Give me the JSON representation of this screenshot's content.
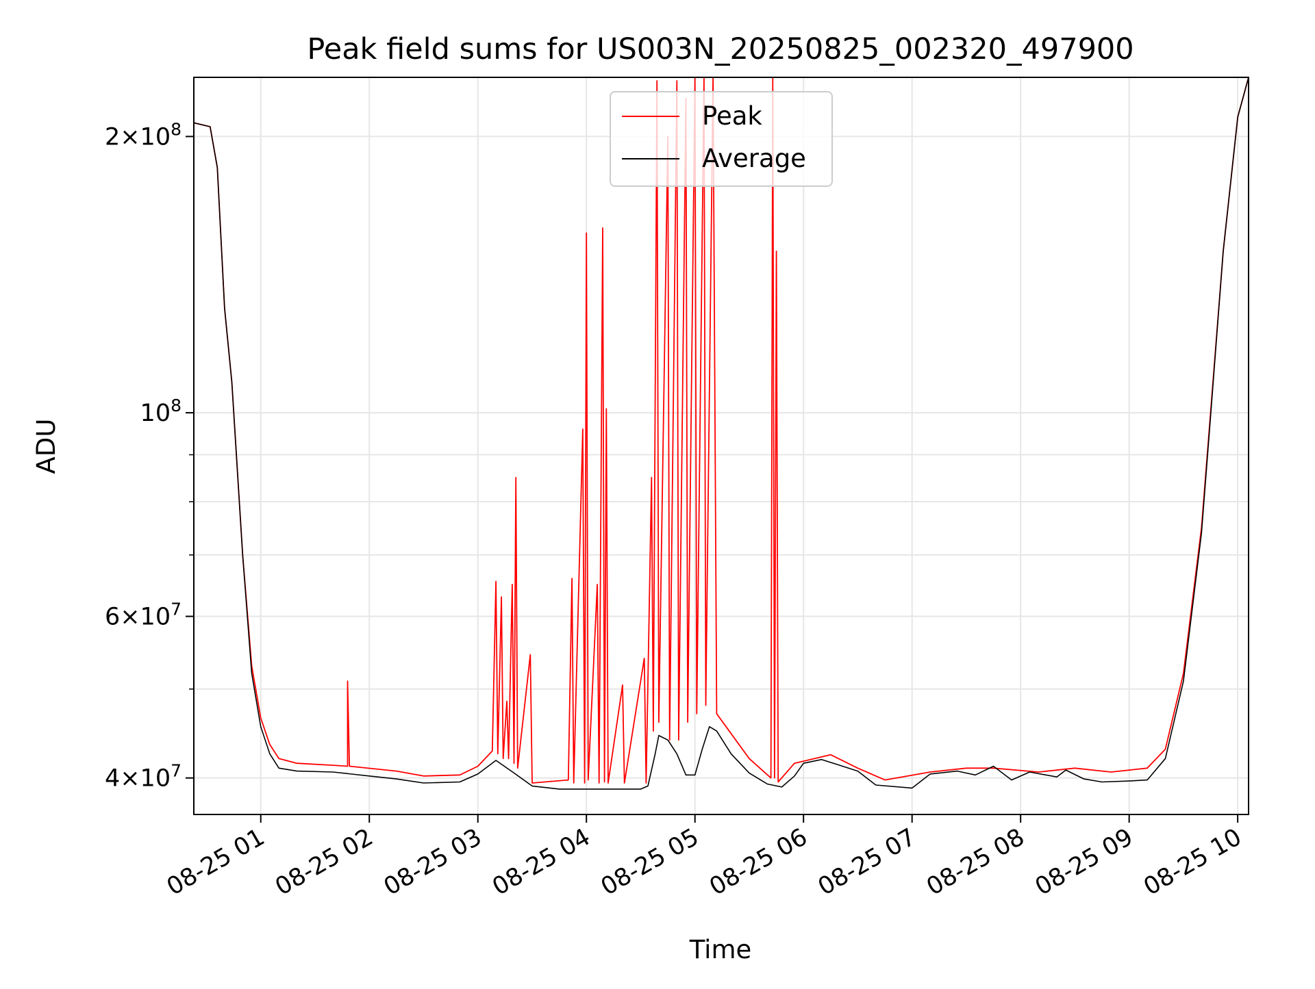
{
  "chart_data": {
    "type": "line",
    "title": "Peak field sums for US003N_20250825_002320_497900",
    "xlabel": "Time",
    "ylabel": "ADU",
    "y_scale": "log",
    "ylim": [
      36500000,
      232000000
    ],
    "xlim": [
      "2025-08-25 00:23",
      "2025-08-25 10:06"
    ],
    "grid": true,
    "legend_position": "top-center",
    "x_ticks": [
      {
        "value": "2025-08-25 01:00",
        "label": "08-25 01"
      },
      {
        "value": "2025-08-25 02:00",
        "label": "08-25 02"
      },
      {
        "value": "2025-08-25 03:00",
        "label": "08-25 03"
      },
      {
        "value": "2025-08-25 04:00",
        "label": "08-25 04"
      },
      {
        "value": "2025-08-25 05:00",
        "label": "08-25 05"
      },
      {
        "value": "2025-08-25 06:00",
        "label": "08-25 06"
      },
      {
        "value": "2025-08-25 07:00",
        "label": "08-25 07"
      },
      {
        "value": "2025-08-25 08:00",
        "label": "08-25 08"
      },
      {
        "value": "2025-08-25 09:00",
        "label": "08-25 09"
      },
      {
        "value": "2025-08-25 10:00",
        "label": "08-25 10"
      }
    ],
    "y_ticks": [
      {
        "value": 40000000,
        "mant": "4",
        "exp": "7"
      },
      {
        "value": 60000000,
        "mant": "6",
        "exp": "7"
      },
      {
        "value": 100000000,
        "mant": "",
        "exp": "8"
      },
      {
        "value": 200000000,
        "mant": "2",
        "exp": "8"
      }
    ],
    "y_minor_ticks": [
      50000000,
      70000000,
      80000000,
      90000000
    ],
    "series": [
      {
        "name": "Peak",
        "color": "#ff0000",
        "values": [
          [
            "2025-08-25 00:23",
            207000000
          ],
          [
            "2025-08-25 00:32",
            205000000
          ],
          [
            "2025-08-25 00:36",
            185000000
          ],
          [
            "2025-08-25 00:40",
            130000000
          ],
          [
            "2025-08-25 00:44",
            108000000
          ],
          [
            "2025-08-25 00:50",
            70000000
          ],
          [
            "2025-08-25 00:55",
            53000000
          ],
          [
            "2025-08-25 01:00",
            46500000
          ],
          [
            "2025-08-25 01:05",
            43500000
          ],
          [
            "2025-08-25 01:10",
            42000000
          ],
          [
            "2025-08-25 01:20",
            41500000
          ],
          [
            "2025-08-25 01:40",
            41300000
          ],
          [
            "2025-08-25 01:48",
            41200000
          ],
          [
            "2025-08-25 01:48",
            51000000
          ],
          [
            "2025-08-25 01:49",
            41200000
          ],
          [
            "2025-08-25 02:15",
            40700000
          ],
          [
            "2025-08-25 02:30",
            40200000
          ],
          [
            "2025-08-25 02:50",
            40300000
          ],
          [
            "2025-08-25 03:00",
            41200000
          ],
          [
            "2025-08-25 03:08",
            42800000
          ],
          [
            "2025-08-25 03:10",
            65500000
          ],
          [
            "2025-08-25 03:11",
            42500000
          ],
          [
            "2025-08-25 03:13",
            63000000
          ],
          [
            "2025-08-25 03:14",
            42000000
          ],
          [
            "2025-08-25 03:16",
            48500000
          ],
          [
            "2025-08-25 03:17",
            42000000
          ],
          [
            "2025-08-25 03:19",
            65000000
          ],
          [
            "2025-08-25 03:20",
            41500000
          ],
          [
            "2025-08-25 03:21",
            85000000
          ],
          [
            "2025-08-25 03:22",
            41000000
          ],
          [
            "2025-08-25 03:29",
            54500000
          ],
          [
            "2025-08-25 03:30",
            39500000
          ],
          [
            "2025-08-25 03:50",
            39800000
          ],
          [
            "2025-08-25 03:52",
            66000000
          ],
          [
            "2025-08-25 03:53",
            39500000
          ],
          [
            "2025-08-25 03:58",
            96000000
          ],
          [
            "2025-08-25 03:59",
            39500000
          ],
          [
            "2025-08-25 04:00",
            157000000
          ],
          [
            "2025-08-25 04:01",
            39800000
          ],
          [
            "2025-08-25 04:06",
            65000000
          ],
          [
            "2025-08-25 04:07",
            39500000
          ],
          [
            "2025-08-25 04:09",
            159000000
          ],
          [
            "2025-08-25 04:10",
            39600000
          ],
          [
            "2025-08-25 04:11",
            101000000
          ],
          [
            "2025-08-25 04:12",
            39500000
          ],
          [
            "2025-08-25 04:20",
            50500000
          ],
          [
            "2025-08-25 04:21",
            39500000
          ],
          [
            "2025-08-25 04:32",
            54000000
          ],
          [
            "2025-08-25 04:33",
            39500000
          ],
          [
            "2025-08-25 04:36",
            85000000
          ],
          [
            "2025-08-25 04:37",
            45000000
          ],
          [
            "2025-08-25 04:39",
            230000000
          ],
          [
            "2025-08-25 04:40",
            46000000
          ],
          [
            "2025-08-25 04:45",
            200000000
          ],
          [
            "2025-08-25 04:46",
            44000000
          ],
          [
            "2025-08-25 04:50",
            230000000
          ],
          [
            "2025-08-25 04:51",
            44000000
          ],
          [
            "2025-08-25 04:55",
            220000000
          ],
          [
            "2025-08-25 04:56",
            46000000
          ],
          [
            "2025-08-25 05:00",
            232000000
          ],
          [
            "2025-08-25 05:01",
            47000000
          ],
          [
            "2025-08-25 05:05",
            232000000
          ],
          [
            "2025-08-25 05:06",
            48000000
          ],
          [
            "2025-08-25 05:10",
            232000000
          ],
          [
            "2025-08-25 05:12",
            47000000
          ],
          [
            "2025-08-25 05:30",
            42000000
          ],
          [
            "2025-08-25 05:42",
            40000000
          ],
          [
            "2025-08-25 05:43",
            232000000
          ],
          [
            "2025-08-25 05:44",
            40000000
          ],
          [
            "2025-08-25 05:45",
            150000000
          ],
          [
            "2025-08-25 05:46",
            39600000
          ],
          [
            "2025-08-25 05:55",
            41500000
          ],
          [
            "2025-08-25 06:15",
            42400000
          ],
          [
            "2025-08-25 06:30",
            41000000
          ],
          [
            "2025-08-25 06:45",
            39800000
          ],
          [
            "2025-08-25 07:10",
            40600000
          ],
          [
            "2025-08-25 07:30",
            41000000
          ],
          [
            "2025-08-25 07:45",
            41000000
          ],
          [
            "2025-08-25 08:10",
            40600000
          ],
          [
            "2025-08-25 08:30",
            41000000
          ],
          [
            "2025-08-25 08:50",
            40600000
          ],
          [
            "2025-08-25 09:10",
            41000000
          ],
          [
            "2025-08-25 09:20",
            43000000
          ],
          [
            "2025-08-25 09:30",
            52000000
          ],
          [
            "2025-08-25 09:40",
            75000000
          ],
          [
            "2025-08-25 09:45",
            100000000
          ],
          [
            "2025-08-25 09:52",
            150000000
          ],
          [
            "2025-08-25 10:00",
            210000000
          ],
          [
            "2025-08-25 10:06",
            232000000
          ]
        ]
      },
      {
        "name": "Average",
        "color": "#000000",
        "values": [
          [
            "2025-08-25 00:23",
            207000000
          ],
          [
            "2025-08-25 00:32",
            205000000
          ],
          [
            "2025-08-25 00:36",
            185000000
          ],
          [
            "2025-08-25 00:40",
            130000000
          ],
          [
            "2025-08-25 00:44",
            108000000
          ],
          [
            "2025-08-25 00:50",
            70000000
          ],
          [
            "2025-08-25 00:55",
            52000000
          ],
          [
            "2025-08-25 01:00",
            45500000
          ],
          [
            "2025-08-25 01:05",
            42500000
          ],
          [
            "2025-08-25 01:10",
            41000000
          ],
          [
            "2025-08-25 01:20",
            40700000
          ],
          [
            "2025-08-25 01:40",
            40600000
          ],
          [
            "2025-08-25 02:00",
            40200000
          ],
          [
            "2025-08-25 02:15",
            39900000
          ],
          [
            "2025-08-25 02:30",
            39500000
          ],
          [
            "2025-08-25 02:50",
            39600000
          ],
          [
            "2025-08-25 03:00",
            40400000
          ],
          [
            "2025-08-25 03:10",
            41800000
          ],
          [
            "2025-08-25 03:20",
            40500000
          ],
          [
            "2025-08-25 03:30",
            39200000
          ],
          [
            "2025-08-25 03:45",
            38900000
          ],
          [
            "2025-08-25 04:10",
            38900000
          ],
          [
            "2025-08-25 04:30",
            38900000
          ],
          [
            "2025-08-25 04:34",
            39200000
          ],
          [
            "2025-08-25 04:38",
            42500000
          ],
          [
            "2025-08-25 04:40",
            44500000
          ],
          [
            "2025-08-25 04:45",
            44000000
          ],
          [
            "2025-08-25 04:50",
            42500000
          ],
          [
            "2025-08-25 04:55",
            40300000
          ],
          [
            "2025-08-25 05:00",
            40300000
          ],
          [
            "2025-08-25 05:04",
            43000000
          ],
          [
            "2025-08-25 05:08",
            45500000
          ],
          [
            "2025-08-25 05:12",
            45000000
          ],
          [
            "2025-08-25 05:20",
            42500000
          ],
          [
            "2025-08-25 05:30",
            40500000
          ],
          [
            "2025-08-25 05:40",
            39400000
          ],
          [
            "2025-08-25 05:48",
            39100000
          ],
          [
            "2025-08-25 05:55",
            40200000
          ],
          [
            "2025-08-25 06:00",
            41500000
          ],
          [
            "2025-08-25 06:10",
            41900000
          ],
          [
            "2025-08-25 06:20",
            41300000
          ],
          [
            "2025-08-25 06:30",
            40700000
          ],
          [
            "2025-08-25 06:40",
            39300000
          ],
          [
            "2025-08-25 07:00",
            39000000
          ],
          [
            "2025-08-25 07:10",
            40400000
          ],
          [
            "2025-08-25 07:25",
            40700000
          ],
          [
            "2025-08-25 07:35",
            40300000
          ],
          [
            "2025-08-25 07:45",
            41200000
          ],
          [
            "2025-08-25 07:55",
            39800000
          ],
          [
            "2025-08-25 08:05",
            40600000
          ],
          [
            "2025-08-25 08:20",
            40100000
          ],
          [
            "2025-08-25 08:25",
            40800000
          ],
          [
            "2025-08-25 08:35",
            39900000
          ],
          [
            "2025-08-25 08:45",
            39600000
          ],
          [
            "2025-08-25 09:00",
            39700000
          ],
          [
            "2025-08-25 09:10",
            39800000
          ],
          [
            "2025-08-25 09:20",
            42000000
          ],
          [
            "2025-08-25 09:30",
            51000000
          ],
          [
            "2025-08-25 09:40",
            74000000
          ],
          [
            "2025-08-25 09:45",
            99000000
          ],
          [
            "2025-08-25 09:52",
            150000000
          ],
          [
            "2025-08-25 10:00",
            210000000
          ],
          [
            "2025-08-25 10:06",
            232000000
          ]
        ]
      }
    ]
  }
}
